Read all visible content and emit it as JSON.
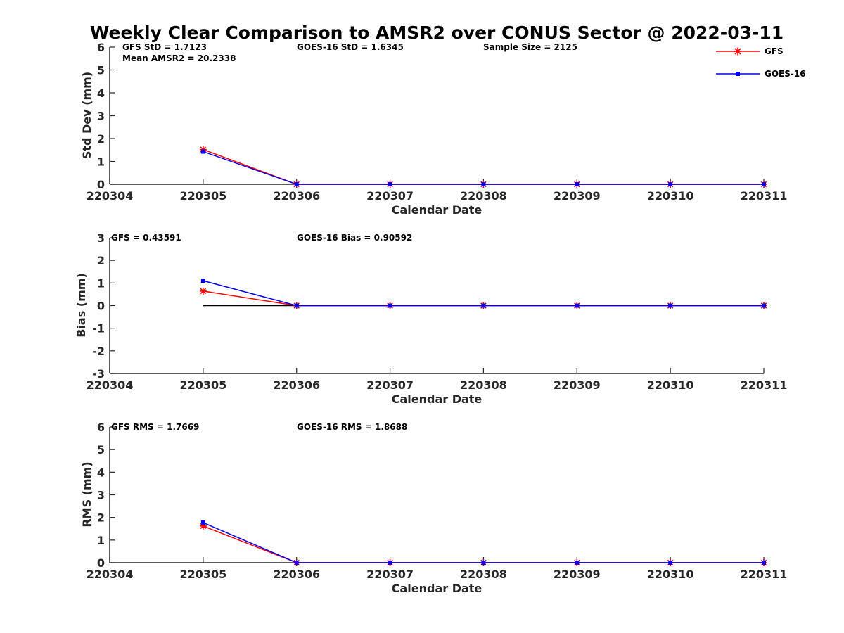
{
  "figure": {
    "title": "Weekly Clear Comparison to AMSR2 over CONUS Sector @ 2022-03-11"
  },
  "legend": {
    "placement": "top-right",
    "entries": [
      "GFS",
      "GOES-16"
    ]
  },
  "colors": {
    "gfs": "#ff0000",
    "goes16": "#0000ee",
    "reference_line": "#000000",
    "axis": "#262626"
  },
  "chart_data": [
    {
      "type": "line",
      "x": [
        "220304",
        "220305",
        "220306",
        "220307",
        "220308",
        "220309",
        "220310",
        "220311"
      ],
      "xlabel": "Calendar Date",
      "ylabel": "Std Dev (mm)",
      "ylim": [
        0,
        6
      ],
      "yticks": [
        "0",
        "1",
        "2",
        "3",
        "4",
        "5",
        "6"
      ],
      "grid": false,
      "annotations": [
        "GFS StD = 1.7123",
        "Mean AMSR2 = 20.2338",
        "GOES-16 StD = 1.6345",
        "Sample Size = 2125"
      ],
      "series": [
        {
          "name": "GFS",
          "marker": "asterisk",
          "values": [
            null,
            1.52,
            0,
            0,
            0,
            0,
            0,
            0
          ]
        },
        {
          "name": "GOES-16",
          "marker": "square",
          "values": [
            null,
            1.43,
            0,
            0,
            0,
            0,
            0,
            0
          ]
        }
      ]
    },
    {
      "type": "line",
      "x": [
        "220304",
        "220305",
        "220306",
        "220307",
        "220308",
        "220309",
        "220310",
        "220311"
      ],
      "xlabel": "Calendar Date",
      "ylabel": "Bias (mm)",
      "ylim": [
        -3,
        3
      ],
      "yticks": [
        "-3",
        "-2",
        "-1",
        "0",
        "1",
        "2",
        "3"
      ],
      "grid": false,
      "zero_line": true,
      "annotations": [
        "GFS = 0.43591",
        "GOES-16 Bias  = 0.90592"
      ],
      "series": [
        {
          "name": "GFS",
          "marker": "asterisk",
          "values": [
            null,
            0.64,
            0,
            0,
            0,
            0,
            0,
            0
          ]
        },
        {
          "name": "GOES-16",
          "marker": "square",
          "values": [
            null,
            1.1,
            0,
            0,
            0,
            0,
            0,
            0
          ]
        }
      ]
    },
    {
      "type": "line",
      "x": [
        "220304",
        "220305",
        "220306",
        "220307",
        "220308",
        "220309",
        "220310",
        "220311"
      ],
      "xlabel": "Calendar Date",
      "ylabel": "RMS (mm)",
      "ylim": [
        0,
        6
      ],
      "yticks": [
        "0",
        "1",
        "2",
        "3",
        "4",
        "5",
        "6"
      ],
      "grid": false,
      "annotations": [
        "GFS RMS = 1.7669",
        "GOES-16 RMS = 1.8688"
      ],
      "series": [
        {
          "name": "GFS",
          "marker": "asterisk",
          "values": [
            null,
            1.62,
            0,
            0,
            0,
            0,
            0,
            0
          ]
        },
        {
          "name": "GOES-16",
          "marker": "square",
          "values": [
            null,
            1.77,
            0,
            0,
            0,
            0,
            0,
            0
          ]
        }
      ]
    }
  ]
}
